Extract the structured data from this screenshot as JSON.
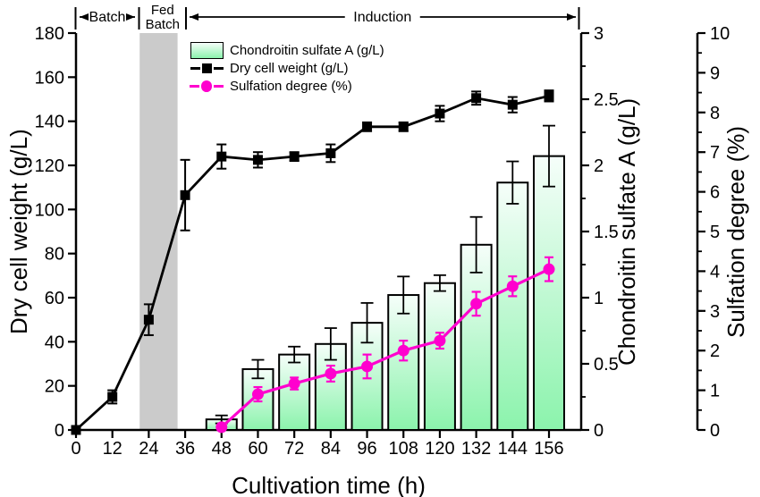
{
  "chart_data": {
    "type": "combo-bar-line",
    "xlabel": "Cultivation time (h)",
    "x_hours": [
      0,
      12,
      24,
      36,
      48,
      60,
      72,
      84,
      96,
      108,
      120,
      132,
      144,
      156
    ],
    "x_tick_labels": [
      "0",
      "12",
      "24",
      "36",
      "48",
      "60",
      "72",
      "84",
      "96",
      "108",
      "120",
      "132",
      "144",
      "156"
    ],
    "axes": {
      "left": {
        "title": "Dry cell weight (g/L)",
        "min": 0,
        "max": 180,
        "major_step": 20
      },
      "right_cs": {
        "title": "Chondroitin sulfate A (g/L)",
        "min": 0,
        "max": 3,
        "major_step": 0.5,
        "minor_step": 0.25
      },
      "right_sd": {
        "title": "Sulfation degree (%)",
        "min": 0,
        "max": 10,
        "major_step": 1,
        "minor_step": 0.5
      }
    },
    "phases": [
      {
        "label": "Batch",
        "start_h": 0,
        "end_h": 21
      },
      {
        "label": "Fed Batch",
        "start_h": 21,
        "end_h": 36
      },
      {
        "label": "Induction",
        "start_h": 36,
        "end_h": 166
      }
    ],
    "shaded_region": {
      "start_h": 21,
      "end_h": 33.5,
      "color": "#cbcbcb"
    },
    "series": [
      {
        "name": "Chondroitin sulfate A (g/L)",
        "type": "bar",
        "axis": "right_cs",
        "x": [
          48,
          60,
          72,
          84,
          96,
          108,
          120,
          132,
          144,
          156
        ],
        "values": [
          0.08,
          0.46,
          0.57,
          0.65,
          0.81,
          1.02,
          1.11,
          1.4,
          1.87,
          2.07
        ],
        "errors": [
          0.03,
          0.07,
          0.06,
          0.12,
          0.15,
          0.14,
          0.06,
          0.21,
          0.16,
          0.23
        ]
      },
      {
        "name": "Dry cell weight (g/L)",
        "type": "line",
        "marker": "square",
        "axis": "left",
        "x": [
          0,
          12,
          24,
          36,
          48,
          60,
          72,
          84,
          96,
          108,
          120,
          132,
          144,
          156
        ],
        "values": [
          0,
          15,
          50,
          106.5,
          124,
          122.5,
          124,
          125.5,
          137.5,
          137.5,
          143.5,
          150.5,
          147.5,
          151.5
        ],
        "errors": [
          0,
          3,
          7,
          16,
          5.5,
          3.5,
          2,
          4,
          2,
          2,
          3.5,
          3,
          3.5,
          2.5
        ]
      },
      {
        "name": "Sulfation degree (%)",
        "type": "line",
        "marker": "circle",
        "axis": "right_sd",
        "x": [
          48,
          60,
          72,
          84,
          96,
          108,
          120,
          132,
          144,
          156
        ],
        "values": [
          0.07,
          0.9,
          1.17,
          1.42,
          1.6,
          2.0,
          2.25,
          3.18,
          3.62,
          4.05
        ],
        "errors": [
          0.04,
          0.18,
          0.15,
          0.2,
          0.3,
          0.25,
          0.2,
          0.3,
          0.25,
          0.3
        ]
      }
    ],
    "legend": [
      {
        "label": "Chondroitin sulfate A (g/L)",
        "swatch": "bar-gradient"
      },
      {
        "label": "Dry cell weight (g/L)",
        "swatch": "black-line-square"
      },
      {
        "label": "Sulfation degree (%)",
        "swatch": "magenta-line-circle"
      }
    ],
    "colors": {
      "bar_top": "#f6fefa",
      "bar_bottom": "#8bf3ac",
      "bar_border": "#000000",
      "dcw_line": "#000000",
      "sulfation_line": "#ff00ce",
      "shade": "#cbcbcb",
      "background": "#ffffff"
    },
    "legend_position": "upper-left-inside",
    "grid": false
  }
}
